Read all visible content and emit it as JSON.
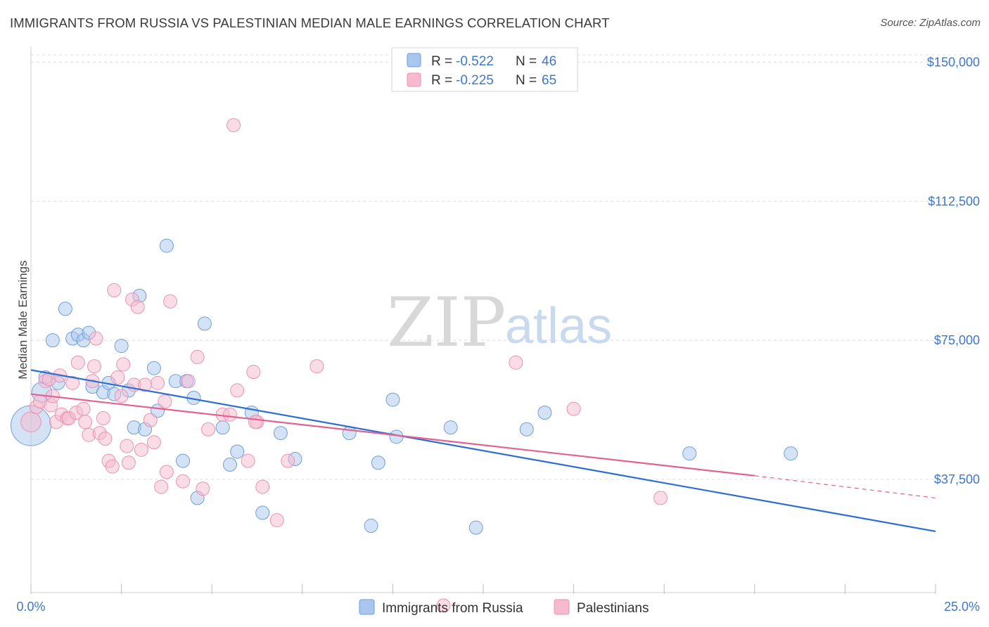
{
  "title": "IMMIGRANTS FROM RUSSIA VS PALESTINIAN MEDIAN MALE EARNINGS CORRELATION CHART",
  "source": "Source: ZipAtlas.com",
  "colors": {
    "russia": "#a9c6ee",
    "russia_stroke": "#6f9fdc",
    "russia_line": "#2c6fd1",
    "palestinian": "#f6b9cd",
    "palestinian_stroke": "#e993b1",
    "palestinian_line": "#e3628f",
    "accent_text": "#3f78c9"
  },
  "legend": {
    "rows": [
      {
        "r_label": "R = ",
        "r_value": "-0.522",
        "n_label": "N = ",
        "n_value": "46"
      },
      {
        "r_label": "R = ",
        "r_value": "-0.225",
        "n_label": "N = ",
        "n_value": "65"
      }
    ]
  },
  "watermark": {
    "zip": "ZIP",
    "atlas": "atlas"
  },
  "chart_data": {
    "type": "scatter",
    "ylabel": "Median Male Earnings",
    "xlim": [
      0,
      25
    ],
    "ylim": [
      7000,
      155000
    ],
    "x_tick_labels": [
      "0.0%",
      "25.0%"
    ],
    "y_ticks": [
      {
        "value": 37500,
        "label": "$37,500"
      },
      {
        "value": 75000,
        "label": "$75,000"
      },
      {
        "value": 112500,
        "label": "$112,500"
      },
      {
        "value": 150000,
        "label": "$150,000"
      }
    ],
    "grid": "horizontal dashed",
    "series": [
      {
        "name": "Immigrants from Russia",
        "color_key": "russia",
        "points": [
          [
            0.0,
            52000,
            3
          ],
          [
            0.3,
            61000,
            1.5
          ],
          [
            0.4,
            65000,
            1
          ],
          [
            0.6,
            75000,
            1
          ],
          [
            0.75,
            63500,
            1
          ],
          [
            0.95,
            83500,
            1
          ],
          [
            1.15,
            75500,
            1
          ],
          [
            1.3,
            76500,
            1
          ],
          [
            1.45,
            75000,
            1
          ],
          [
            1.6,
            77000,
            1
          ],
          [
            1.7,
            62500,
            1
          ],
          [
            2.0,
            61000,
            1
          ],
          [
            2.15,
            63500,
            1
          ],
          [
            2.3,
            60500,
            1
          ],
          [
            2.5,
            73500,
            1
          ],
          [
            2.7,
            61500,
            1
          ],
          [
            2.85,
            51500,
            1
          ],
          [
            3.0,
            87000,
            1
          ],
          [
            3.15,
            51000,
            1
          ],
          [
            3.4,
            67500,
            1
          ],
          [
            3.5,
            56000,
            1
          ],
          [
            3.75,
            100500,
            1
          ],
          [
            4.0,
            64000,
            1
          ],
          [
            4.2,
            42500,
            1
          ],
          [
            4.3,
            64000,
            1
          ],
          [
            4.5,
            59500,
            1
          ],
          [
            4.6,
            32500,
            1
          ],
          [
            4.8,
            79500,
            1
          ],
          [
            5.3,
            51500,
            1
          ],
          [
            5.5,
            41500,
            1
          ],
          [
            5.7,
            45000,
            1
          ],
          [
            6.1,
            55500,
            1
          ],
          [
            6.4,
            28500,
            1
          ],
          [
            6.9,
            50000,
            1
          ],
          [
            7.3,
            43000,
            1
          ],
          [
            8.8,
            50000,
            1
          ],
          [
            9.4,
            25000,
            1
          ],
          [
            9.6,
            42000,
            1
          ],
          [
            10.0,
            59000,
            1
          ],
          [
            10.1,
            49000,
            1
          ],
          [
            11.6,
            51500,
            1
          ],
          [
            12.3,
            24500,
            1
          ],
          [
            13.7,
            51000,
            1
          ],
          [
            14.2,
            55500,
            1
          ],
          [
            18.2,
            44500,
            1
          ],
          [
            21.0,
            44500,
            1
          ]
        ],
        "trend": {
          "x0": 0.0,
          "y0": 67000,
          "x1": 25.0,
          "y1": 23500
        }
      },
      {
        "name": "Palestinians",
        "color_key": "palestinian",
        "points": [
          [
            0.0,
            53000,
            1.5
          ],
          [
            0.15,
            57000,
            1
          ],
          [
            0.25,
            58500,
            1
          ],
          [
            0.4,
            64000,
            1
          ],
          [
            0.5,
            64500,
            1
          ],
          [
            0.55,
            57500,
            1
          ],
          [
            0.6,
            60000,
            1
          ],
          [
            0.7,
            53000,
            1
          ],
          [
            0.8,
            65500,
            1
          ],
          [
            0.85,
            55000,
            1
          ],
          [
            1.0,
            54000,
            1
          ],
          [
            1.05,
            54000,
            1
          ],
          [
            1.15,
            63500,
            1
          ],
          [
            1.25,
            55500,
            1
          ],
          [
            1.3,
            69000,
            1
          ],
          [
            1.45,
            56500,
            1
          ],
          [
            1.5,
            53000,
            1
          ],
          [
            1.6,
            49500,
            1
          ],
          [
            1.7,
            64000,
            1
          ],
          [
            1.75,
            68000,
            1
          ],
          [
            1.8,
            75500,
            1
          ],
          [
            1.9,
            50000,
            1
          ],
          [
            2.0,
            54000,
            1
          ],
          [
            2.05,
            48500,
            1
          ],
          [
            2.15,
            42500,
            1
          ],
          [
            2.25,
            41000,
            1
          ],
          [
            2.3,
            88500,
            1
          ],
          [
            2.4,
            65000,
            1
          ],
          [
            2.5,
            60000,
            1
          ],
          [
            2.55,
            68500,
            1
          ],
          [
            2.65,
            46500,
            1
          ],
          [
            2.7,
            42000,
            1
          ],
          [
            2.8,
            86000,
            1
          ],
          [
            2.85,
            63000,
            1
          ],
          [
            2.95,
            84000,
            1
          ],
          [
            3.05,
            45500,
            1
          ],
          [
            3.15,
            63000,
            1
          ],
          [
            3.3,
            53500,
            1
          ],
          [
            3.4,
            47500,
            1
          ],
          [
            3.5,
            63500,
            1
          ],
          [
            3.6,
            35500,
            1
          ],
          [
            3.7,
            58500,
            1
          ],
          [
            3.75,
            39500,
            1
          ],
          [
            3.85,
            85500,
            1
          ],
          [
            4.2,
            37000,
            1
          ],
          [
            4.35,
            64000,
            1
          ],
          [
            4.6,
            70500,
            1
          ],
          [
            4.75,
            35000,
            1
          ],
          [
            4.9,
            51000,
            1
          ],
          [
            5.3,
            55000,
            1
          ],
          [
            5.5,
            55000,
            1
          ],
          [
            5.6,
            133000,
            1
          ],
          [
            5.7,
            61500,
            1
          ],
          [
            6.0,
            42500,
            1
          ],
          [
            6.15,
            66500,
            1
          ],
          [
            6.25,
            53000,
            1
          ],
          [
            6.4,
            35500,
            1
          ],
          [
            6.8,
            26500,
            1
          ],
          [
            7.1,
            42500,
            1
          ],
          [
            7.9,
            68000,
            1
          ],
          [
            11.4,
            3500,
            1
          ],
          [
            13.4,
            69000,
            1
          ],
          [
            15.0,
            56500,
            1
          ],
          [
            17.4,
            32500,
            1
          ],
          [
            6.2,
            53000,
            1
          ]
        ],
        "trend": {
          "x0": 0.0,
          "y0": 60500,
          "x1": 20.0,
          "y1": 38500
        },
        "trend_dashed_extension": {
          "x0": 20.0,
          "y0": 38500,
          "x1": 25.0,
          "y1": 32500
        }
      }
    ]
  }
}
